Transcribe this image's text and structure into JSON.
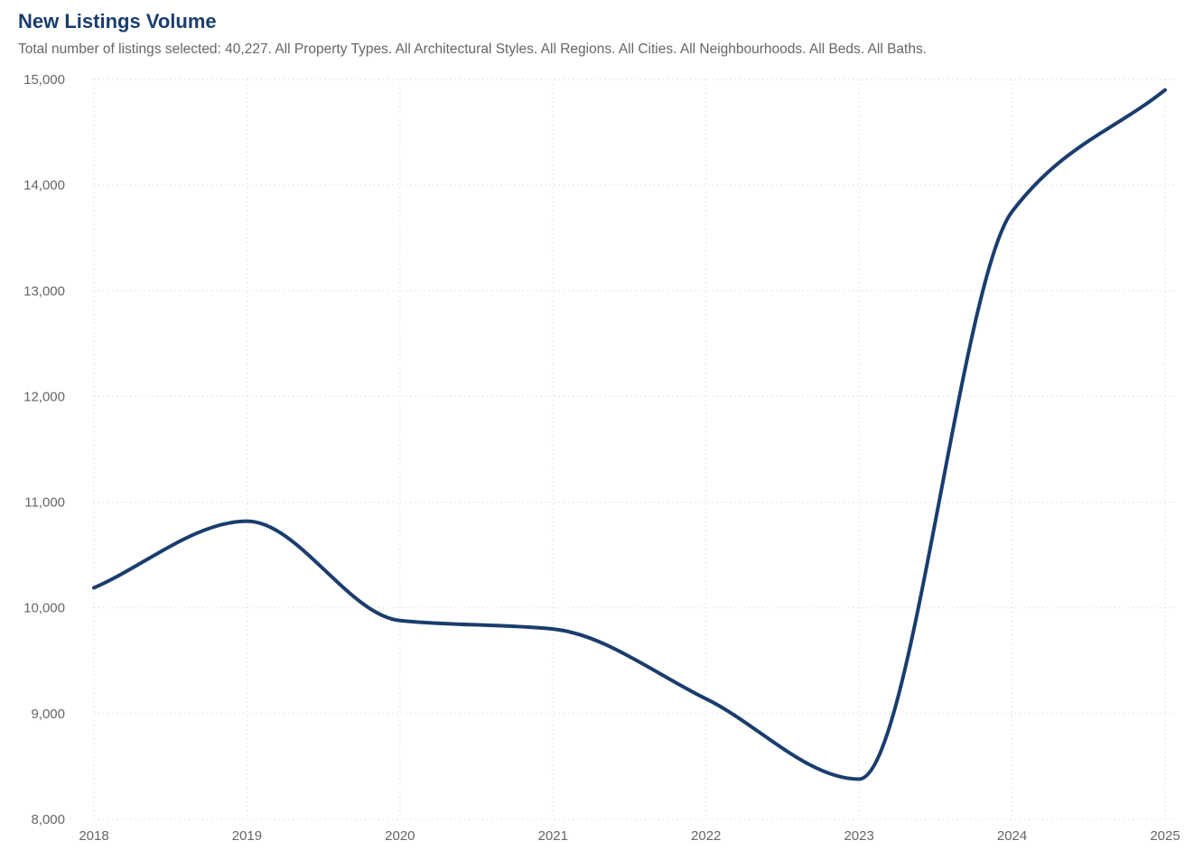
{
  "chart_data": {
    "type": "line",
    "title": "New Listings Volume",
    "subtitle": "Total number of listings selected: 40,227. All Property Types. All Architectural Styles. All Regions. All Cities. All Neighbourhoods. All Beds. All Baths.",
    "xlabel": "",
    "ylabel": "",
    "categories": [
      "2018",
      "2019",
      "2020",
      "2021",
      "2022",
      "2023",
      "2024",
      "2025"
    ],
    "series": [
      {
        "name": "New Listings",
        "color": "#1a3d6d",
        "values": [
          10190,
          10820,
          9880,
          9800,
          9140,
          8380,
          13750,
          14900
        ]
      }
    ],
    "ylim": [
      8000,
      15000
    ],
    "yticks": [
      8000,
      9000,
      10000,
      11000,
      12000,
      13000,
      14000,
      15000
    ],
    "ytick_labels": [
      "8,000",
      "9,000",
      "10,000",
      "11,000",
      "12,000",
      "13,000",
      "14,000",
      "15,000"
    ],
    "grid": true,
    "legend": "none"
  },
  "colors": {
    "title": "#1a3d6d",
    "text": "#666666",
    "grid": "#cfcfcf"
  }
}
